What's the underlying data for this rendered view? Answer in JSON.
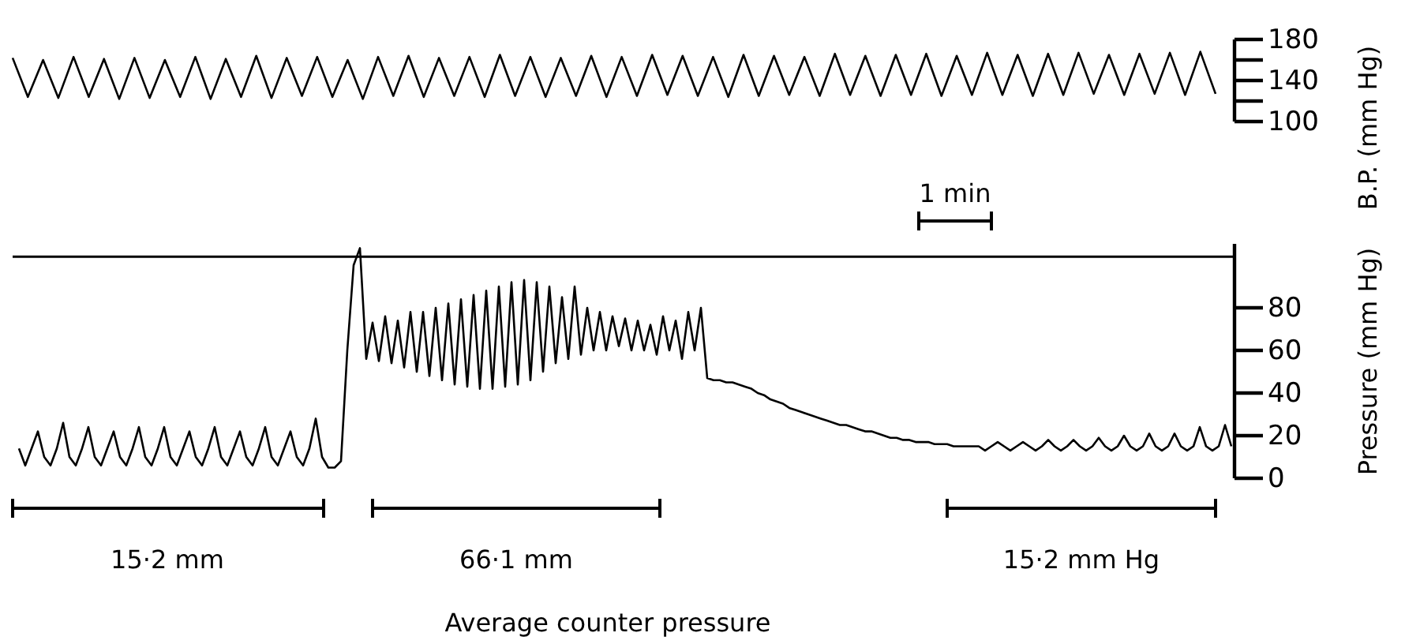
{
  "chart_data": [
    {
      "type": "line",
      "ylabel": "B.P. (mm Hg)",
      "ylim": [
        100,
        180
      ],
      "yticks": [
        100,
        140,
        180
      ],
      "tick_labels": "y",
      "marker": "none",
      "line_style": "solid",
      "annotations": [
        "1 min"
      ],
      "categories": [
        null,
        null,
        null,
        null,
        null,
        null,
        null,
        null,
        null,
        null,
        null,
        null,
        null,
        null,
        null,
        null,
        null,
        null,
        null,
        null,
        null,
        null,
        null,
        null,
        null,
        null,
        null,
        null,
        null,
        null,
        null,
        null,
        null,
        null,
        null,
        null,
        null,
        null,
        null,
        null,
        null,
        null,
        null,
        null,
        null,
        null,
        null,
        null,
        null,
        null,
        null,
        null,
        null,
        null,
        null,
        null,
        null,
        null,
        null,
        null,
        null,
        null,
        null,
        null,
        null,
        null,
        null,
        null,
        null,
        null,
        null,
        null,
        null,
        null,
        null,
        null,
        null,
        null,
        null,
        null
      ],
      "series": [
        {
          "color": "#000000",
          "values": [
            162,
            124,
            160,
            123,
            163,
            124,
            161,
            122,
            162,
            123,
            160,
            124,
            163,
            122,
            161,
            124,
            164,
            123,
            162,
            125,
            163,
            124,
            160,
            122,
            163,
            125,
            164,
            124,
            162,
            125,
            163,
            124,
            165,
            125,
            163,
            124,
            162,
            125,
            164,
            124,
            163,
            125,
            165,
            126,
            164,
            125,
            163,
            124,
            165,
            125,
            164,
            126,
            163,
            125,
            166,
            126,
            164,
            125,
            165,
            126,
            166,
            125,
            164,
            126,
            167,
            126,
            165,
            125,
            166,
            126,
            167,
            127,
            165,
            126,
            166,
            127,
            167,
            126,
            168,
            127
          ]
        }
      ]
    },
    {
      "type": "line",
      "ylabel": "Pressure (mm Hg)",
      "ylim": [
        0,
        110
      ],
      "yticks": [
        0,
        20,
        40,
        60,
        80
      ],
      "tick_labels": "y",
      "marker": "none",
      "line_style": "solid",
      "ref_lines": [
        {
          "axis": "y",
          "value": 104
        }
      ],
      "annotations": [
        "15·2 mm",
        "66·1 mm",
        "15·2 mm Hg",
        "Average counter pressure"
      ],
      "categories": [
        null,
        null,
        null,
        null,
        null,
        null,
        null,
        null,
        null,
        null,
        null,
        null,
        null,
        null,
        null,
        null,
        null,
        null,
        null,
        null,
        null,
        null,
        null,
        null,
        null,
        null,
        null,
        null,
        null,
        null,
        null,
        null,
        null,
        null,
        null,
        null,
        null,
        null,
        null,
        null,
        null,
        null,
        null,
        null,
        null,
        null,
        null,
        null,
        null,
        null,
        null,
        null,
        null,
        null,
        null,
        null,
        null,
        null,
        null,
        null,
        null,
        null,
        null,
        null,
        null,
        null,
        null,
        null,
        null,
        null,
        null,
        null,
        null,
        null,
        null,
        null,
        null,
        null,
        null,
        null,
        null,
        null,
        null,
        null,
        null,
        null,
        null,
        null,
        null,
        null,
        null,
        null,
        null,
        null,
        null,
        null,
        null,
        null,
        null,
        null,
        null,
        null,
        null,
        null,
        null,
        null,
        null,
        null,
        null,
        null,
        null,
        null,
        null,
        null,
        null,
        null,
        null,
        null,
        null,
        null,
        null,
        null,
        null,
        null,
        null,
        null,
        null,
        null,
        null,
        null,
        null,
        null,
        null,
        null,
        null,
        null,
        null,
        null,
        null,
        null,
        null,
        null,
        null,
        null,
        null,
        null,
        null,
        null,
        null,
        null,
        null,
        null,
        null,
        null,
        null,
        null,
        null,
        null,
        null,
        null,
        null,
        null,
        null,
        null,
        null,
        null,
        null,
        null,
        null,
        null,
        null,
        null,
        null,
        null,
        null,
        null,
        null,
        null,
        null,
        null,
        null,
        null,
        null,
        null,
        null,
        null,
        null,
        null,
        null,
        null,
        null,
        null,
        null
      ],
      "series": [
        {
          "color": "#000000",
          "values": [
            14,
            6,
            14,
            22,
            10,
            6,
            14,
            26,
            10,
            6,
            14,
            24,
            10,
            6,
            14,
            22,
            10,
            6,
            14,
            24,
            10,
            6,
            14,
            24,
            10,
            6,
            14,
            22,
            10,
            6,
            14,
            24,
            10,
            6,
            14,
            22,
            10,
            6,
            14,
            24,
            10,
            6,
            14,
            22,
            10,
            6,
            14,
            28,
            10,
            5,
            5,
            8,
            60,
            100,
            108,
            56,
            73,
            55,
            76,
            54,
            74,
            52,
            78,
            50,
            78,
            48,
            80,
            46,
            82,
            44,
            84,
            43,
            86,
            42,
            88,
            42,
            90,
            43,
            92,
            44,
            93,
            46,
            92,
            50,
            90,
            54,
            85,
            56,
            90,
            58,
            80,
            60,
            78,
            60,
            76,
            62,
            75,
            60,
            74,
            60,
            72,
            58,
            76,
            60,
            74,
            56,
            78,
            60,
            80,
            47,
            46,
            46,
            45,
            45,
            44,
            43,
            42,
            40,
            39,
            37,
            36,
            35,
            33,
            32,
            31,
            30,
            29,
            28,
            27,
            26,
            25,
            25,
            24,
            23,
            22,
            22,
            21,
            20,
            19,
            19,
            18,
            18,
            17,
            17,
            17,
            16,
            16,
            16,
            15,
            15,
            15,
            15,
            15,
            13,
            15,
            17,
            15,
            13,
            15,
            17,
            15,
            13,
            15,
            18,
            15,
            13,
            15,
            18,
            15,
            13,
            15,
            19,
            15,
            13,
            15,
            20,
            15,
            13,
            15,
            21,
            15,
            13,
            15,
            21,
            15,
            13,
            15,
            24,
            15,
            13,
            15,
            25,
            15
          ]
        }
      ]
    }
  ]
}
